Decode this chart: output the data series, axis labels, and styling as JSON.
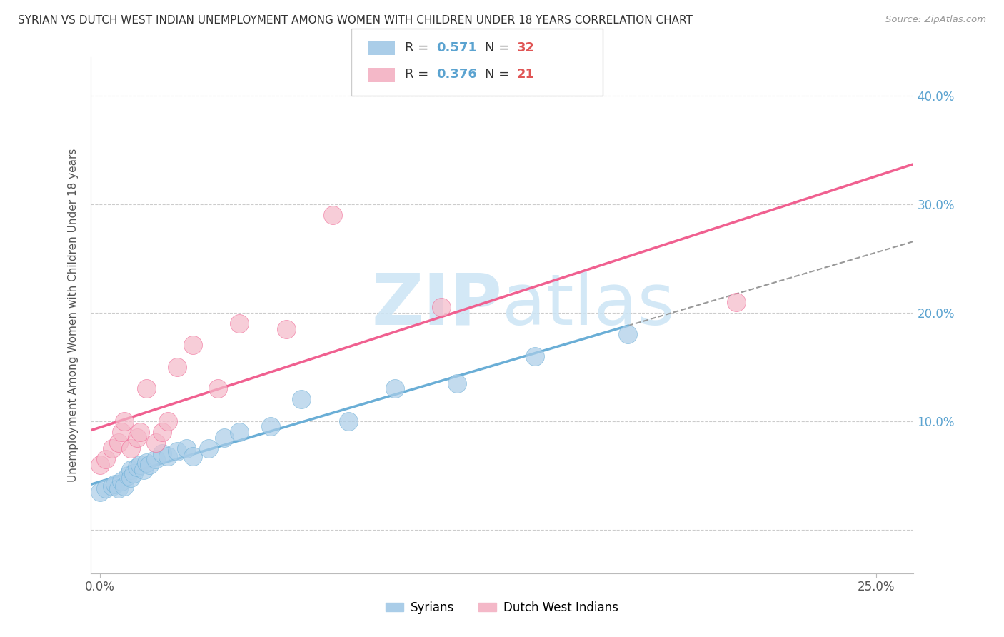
{
  "title": "SYRIAN VS DUTCH WEST INDIAN UNEMPLOYMENT AMONG WOMEN WITH CHILDREN UNDER 18 YEARS CORRELATION CHART",
  "source": "Source: ZipAtlas.com",
  "ylabel": "Unemployment Among Women with Children Under 18 years",
  "xlim": [
    -0.003,
    0.262
  ],
  "ylim": [
    -0.04,
    0.435
  ],
  "x_ticks": [
    0.0,
    0.25
  ],
  "x_tick_labels": [
    "0.0%",
    "25.0%"
  ],
  "y_ticks": [
    0.0,
    0.1,
    0.2,
    0.3,
    0.4
  ],
  "y_tick_labels": [
    "",
    "10.0%",
    "20.0%",
    "30.0%",
    "40.0%"
  ],
  "syrians_color": "#6aaed6",
  "syrians_fill": "#aacde8",
  "dutch_color": "#f06090",
  "dutch_fill": "#f4b8c8",
  "background_color": "#ffffff",
  "grid_color": "#cccccc",
  "watermark_color": "#cce5f5",
  "syrians_R": "0.571",
  "syrians_N": "32",
  "dutch_R": "0.376",
  "dutch_N": "21",
  "label_color_blue": "#5ba3d0",
  "label_color_red": "#e05555",
  "legend_text_color": "#333333",
  "syrians_scatter_x": [
    0.0,
    0.002,
    0.004,
    0.005,
    0.006,
    0.007,
    0.008,
    0.009,
    0.01,
    0.01,
    0.011,
    0.012,
    0.013,
    0.014,
    0.015,
    0.016,
    0.018,
    0.02,
    0.022,
    0.025,
    0.028,
    0.03,
    0.035,
    0.04,
    0.045,
    0.055,
    0.065,
    0.08,
    0.095,
    0.115,
    0.14,
    0.17
  ],
  "syrians_scatter_y": [
    0.035,
    0.038,
    0.04,
    0.042,
    0.038,
    0.045,
    0.04,
    0.05,
    0.055,
    0.048,
    0.052,
    0.058,
    0.06,
    0.055,
    0.062,
    0.06,
    0.065,
    0.07,
    0.068,
    0.072,
    0.075,
    0.068,
    0.075,
    0.085,
    0.09,
    0.095,
    0.12,
    0.1,
    0.13,
    0.135,
    0.16,
    0.18
  ],
  "dutch_scatter_x": [
    0.0,
    0.002,
    0.004,
    0.006,
    0.007,
    0.008,
    0.01,
    0.012,
    0.013,
    0.015,
    0.018,
    0.02,
    0.022,
    0.025,
    0.03,
    0.038,
    0.045,
    0.06,
    0.075,
    0.11,
    0.205
  ],
  "dutch_scatter_y": [
    0.06,
    0.065,
    0.075,
    0.08,
    0.09,
    0.1,
    0.075,
    0.085,
    0.09,
    0.13,
    0.08,
    0.09,
    0.1,
    0.15,
    0.17,
    0.13,
    0.19,
    0.185,
    0.29,
    0.205,
    0.21
  ],
  "bottom_legend_syrians": "Syrians",
  "bottom_legend_dutch": "Dutch West Indians"
}
